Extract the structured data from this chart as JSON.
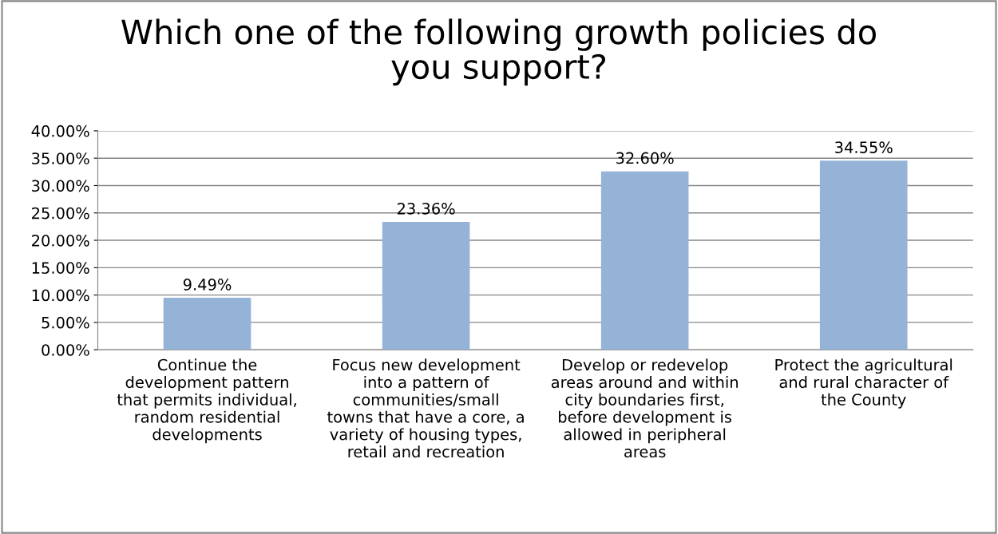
{
  "chart_data": {
    "type": "bar",
    "title": "Which one of the following growth policies do\nyou support?",
    "categories": [
      "Continue the\ndevelopment pattern\nthat permits individual,\nrandom residential\ndevelopments",
      "Focus new development\ninto a pattern of\ncommunities/small\ntowns that have a core, a\nvariety of housing types,\nretail and recreation",
      "Develop or redevelop\nareas around and within\ncity boundaries first,\nbefore development is\nallowed in peripheral\nareas",
      "Protect the agricultural\nand rural character of\nthe County"
    ],
    "values": [
      9.49,
      23.36,
      32.6,
      34.55
    ],
    "value_labels": [
      "9.49%",
      "23.36%",
      "32.60%",
      "34.55%"
    ],
    "color": "#95b3d7",
    "ylim": [
      0,
      40
    ],
    "yticks": [
      {
        "value": 0,
        "label": "0.00%"
      },
      {
        "value": 5,
        "label": "5.00%"
      },
      {
        "value": 10,
        "label": "10.00%"
      },
      {
        "value": 15,
        "label": "15.00%"
      },
      {
        "value": 20,
        "label": "20.00%"
      },
      {
        "value": 25,
        "label": "25.00%"
      },
      {
        "value": 30,
        "label": "30.00%"
      },
      {
        "value": 35,
        "label": "35.00%"
      },
      {
        "value": 40,
        "label": "40.00%"
      }
    ],
    "grid": "y"
  }
}
